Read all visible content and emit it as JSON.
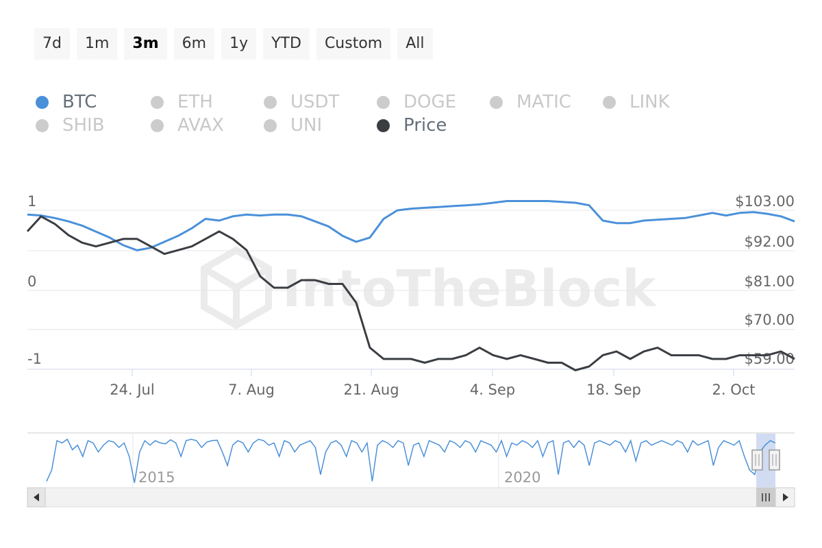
{
  "range_buttons": [
    {
      "label": "7d",
      "active": false
    },
    {
      "label": "1m",
      "active": false
    },
    {
      "label": "3m",
      "active": true
    },
    {
      "label": "6m",
      "active": false
    },
    {
      "label": "1y",
      "active": false
    },
    {
      "label": "YTD",
      "active": false
    },
    {
      "label": "Custom",
      "active": false
    },
    {
      "label": "All",
      "active": false
    }
  ],
  "legend": [
    {
      "label": "BTC",
      "color": "#4a90d9",
      "on": true
    },
    {
      "label": "ETH",
      "color": "#cccccc",
      "on": false
    },
    {
      "label": "USDT",
      "color": "#cccccc",
      "on": false
    },
    {
      "label": "DOGE",
      "color": "#cccccc",
      "on": false
    },
    {
      "label": "MATIC",
      "color": "#cccccc",
      "on": false
    },
    {
      "label": "LINK",
      "color": "#cccccc",
      "on": false
    },
    {
      "label": "SHIB",
      "color": "#cccccc",
      "on": false
    },
    {
      "label": "AVAX",
      "color": "#cccccc",
      "on": false
    },
    {
      "label": "UNI",
      "color": "#cccccc",
      "on": false
    },
    {
      "label": "Price",
      "color": "#3a3d42",
      "on": true
    }
  ],
  "watermark": "IntoTheBlock",
  "chart_data": {
    "type": "line",
    "x_ticks": [
      "24. Jul",
      "7. Aug",
      "21. Aug",
      "4. Sep",
      "18. Sep",
      "2. Oct"
    ],
    "y_left": {
      "ticks": [
        "1",
        "0",
        "-1"
      ],
      "range": [
        -1,
        1
      ]
    },
    "y_right": {
      "ticks": [
        "$103.00",
        "$92.00",
        "$81.00",
        "$70.00",
        "$59.00"
      ],
      "range": [
        59,
        103
      ]
    },
    "series": [
      {
        "name": "BTC",
        "axis": "left",
        "color": "#4a90d9",
        "values": [
          0.82,
          0.81,
          0.78,
          0.74,
          0.69,
          0.62,
          0.55,
          0.46,
          0.4,
          0.43,
          0.5,
          0.57,
          0.66,
          0.77,
          0.75,
          0.8,
          0.82,
          0.81,
          0.82,
          0.82,
          0.8,
          0.74,
          0.68,
          0.57,
          0.5,
          0.55,
          0.77,
          0.87,
          0.89,
          0.9,
          0.91,
          0.92,
          0.93,
          0.94,
          0.96,
          0.98,
          0.98,
          0.98,
          0.98,
          0.97,
          0.96,
          0.93,
          0.75,
          0.72,
          0.72,
          0.75,
          0.76,
          0.77,
          0.78,
          0.81,
          0.84,
          0.81,
          0.84,
          0.85,
          0.83,
          0.8,
          0.74
        ]
      },
      {
        "name": "Price",
        "axis": "right",
        "color": "#3a3d42",
        "values": [
          95,
          99,
          97,
          94,
          92,
          91,
          92,
          93,
          93,
          91,
          89,
          90,
          91,
          93,
          95,
          93,
          90,
          83,
          80,
          80,
          82,
          82,
          81,
          81,
          76,
          64,
          61,
          61,
          61,
          60,
          61,
          61,
          62,
          64,
          62,
          61,
          62,
          61,
          60,
          60,
          58,
          59,
          62,
          63,
          61,
          63,
          64,
          62,
          62,
          62,
          61,
          61,
          62,
          62,
          62,
          63,
          61
        ]
      }
    ]
  },
  "navigator": {
    "labels": [
      "2015",
      "2020"
    ],
    "values": [
      0.05,
      0.3,
      0.95,
      0.9,
      0.98,
      0.75,
      0.85,
      0.6,
      0.95,
      0.9,
      0.7,
      0.85,
      0.95,
      0.92,
      0.8,
      0.9,
      0.6,
      0.02,
      0.7,
      0.95,
      0.85,
      0.95,
      0.9,
      0.88,
      0.97,
      0.9,
      0.6,
      0.95,
      0.98,
      0.95,
      0.8,
      0.92,
      0.95,
      0.96,
      0.7,
      0.4,
      0.85,
      0.95,
      0.9,
      0.7,
      0.9,
      0.98,
      0.95,
      0.85,
      0.9,
      0.6,
      0.95,
      0.9,
      0.7,
      0.85,
      0.9,
      0.95,
      0.8,
      0.2,
      0.7,
      0.9,
      0.95,
      0.85,
      0.6,
      0.95,
      0.9,
      0.7,
      0.9,
      0.05,
      0.85,
      0.95,
      0.9,
      0.8,
      0.95,
      0.9,
      0.4,
      0.85,
      0.9,
      0.6,
      0.95,
      0.9,
      0.85,
      0.7,
      0.95,
      0.9,
      0.8,
      0.95,
      0.9,
      0.7,
      0.95,
      0.9,
      0.85,
      0.7,
      0.95,
      0.6,
      0.9,
      0.85,
      0.95,
      0.9,
      0.8,
      0.95,
      0.6,
      0.9,
      0.95,
      0.2,
      0.9,
      0.95,
      0.8,
      0.95,
      0.85,
      0.4,
      0.9,
      0.95,
      0.9,
      0.85,
      0.95,
      0.9,
      0.7,
      0.95,
      0.5,
      0.9,
      0.95,
      0.85,
      0.9,
      0.95,
      0.9,
      0.85,
      0.95,
      0.9,
      0.7,
      0.95,
      0.85,
      0.9,
      0.95,
      0.4,
      0.8,
      0.95,
      0.9,
      0.85,
      0.95,
      0.6,
      0.3,
      0.2,
      0.7,
      0.85,
      0.95,
      0.9
    ]
  }
}
